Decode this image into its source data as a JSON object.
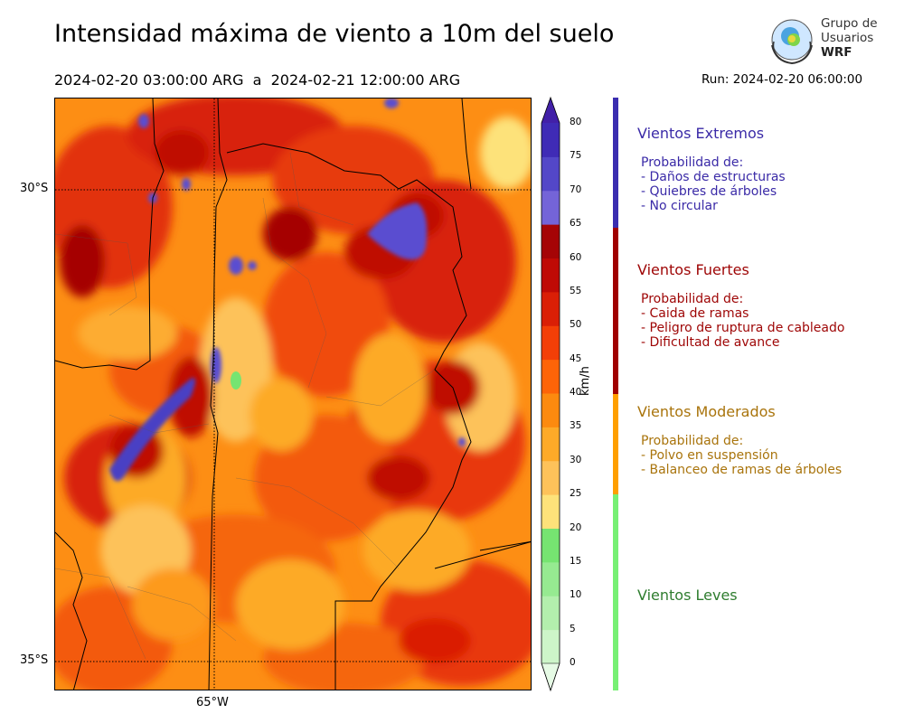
{
  "title": "Intensidad máxima de viento a 10m del suelo",
  "period": "2024-02-20 03:00:00 ARG  a  2024-02-21 12:00:00 ARG",
  "run": "Run: 2024-02-20 06:00:00",
  "logo": {
    "line1": "Grupo de",
    "line2": "Usuarios",
    "line3": "WRF"
  },
  "map": {
    "lat_labels": [
      "30°S",
      "35°S"
    ],
    "lon_labels": [
      "65°W"
    ]
  },
  "colorbar": {
    "unit_label": "km/h",
    "ticks": [
      "0",
      "5",
      "10",
      "15",
      "20",
      "25",
      "30",
      "35",
      "40",
      "45",
      "50",
      "55",
      "60",
      "65",
      "70",
      "75",
      "80"
    ],
    "colors": [
      "#e6fbe5",
      "#cdf5c9",
      "#b3efad",
      "#96ea91",
      "#76e471",
      "#fde27a",
      "#fdc25a",
      "#fdaa28",
      "#fc8a0f",
      "#fd6408",
      "#f33f07",
      "#da1f06",
      "#bf0a05",
      "#a50406",
      "#7464d8",
      "#5347c8",
      "#3f2bb6",
      "#4220a8"
    ]
  },
  "categories": [
    {
      "title": "Vientos Extremos",
      "color": "#3a2aa7",
      "lines": [
        "Probabilidad de:",
        "- Daños de estructuras",
        "- Quiebres de árboles",
        "- No circular"
      ]
    },
    {
      "title": "Vientos Fuertes",
      "color": "#9e0505",
      "lines": [
        "Probabilidad de:",
        "- Caida de ramas",
        "- Peligro de ruptura de cableado",
        "- Dificultad de avance"
      ]
    },
    {
      "title": "Vientos Moderados",
      "color": "#a9740c",
      "lines": [
        "Probabilidad de:",
        "- Polvo en suspensión",
        "- Balanceo de ramas de árboles"
      ]
    },
    {
      "title": "Vientos Leves",
      "color": "#2f7d2f",
      "lines": []
    }
  ],
  "bar_colors": [
    "#3a2db0",
    "#a00000",
    "#ff9f00",
    "#77f074"
  ]
}
